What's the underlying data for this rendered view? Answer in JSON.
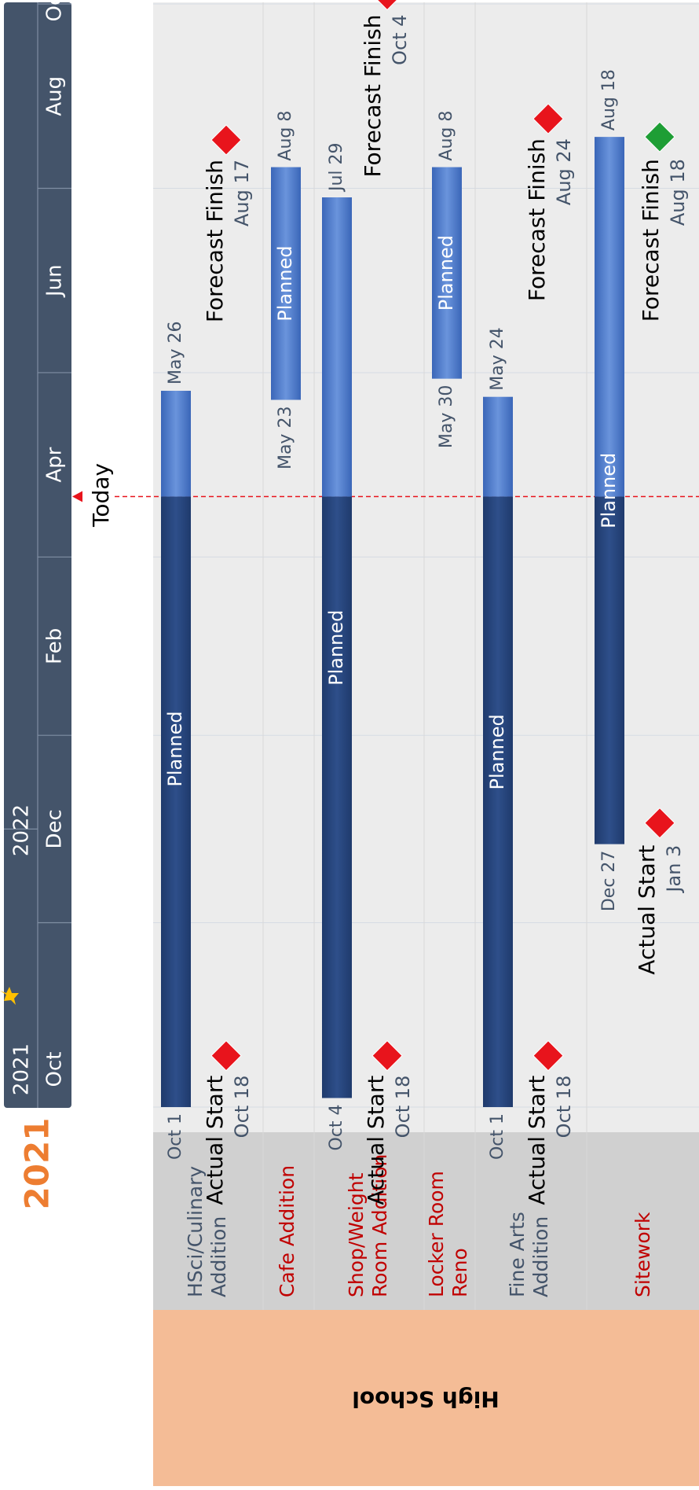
{
  "header": {
    "year_title": "2021",
    "years": [
      "2021",
      "2022"
    ],
    "months": [
      "Oct",
      "Dec",
      "Feb",
      "Apr",
      "Jun",
      "Aug",
      "Oct"
    ]
  },
  "today": {
    "label": "Today",
    "date": "2022-04-21"
  },
  "group": {
    "label": "High School"
  },
  "colors": {
    "header_bg": "#44546a",
    "group_bg": "#f4bc96",
    "task_col_bg": "#d0d0d0",
    "plot_bg": "#ececec",
    "year_title": "#ed7d31",
    "task_label_alt": "#c00000",
    "task_label": "#44546a",
    "bar_done": "#2e4f8a",
    "bar_planned": "#4a78c8",
    "milestone_late": "#e8141c",
    "milestone_ok": "#1e9e35",
    "today_line": "#e8141c"
  },
  "chart_data": {
    "type": "gantt",
    "title": "2021",
    "x_range": [
      "2021-09-20",
      "2022-10-31"
    ],
    "tasks": [
      {
        "name": "HSci/Culinary Addition",
        "start": "2021-10-01",
        "end": "2022-05-26",
        "start_label": "Oct 1",
        "end_label": "May 26",
        "bar_label": "Planned",
        "label_color": "#44546a",
        "milestones": [
          {
            "label": "Actual Start",
            "date_label": "Oct 18",
            "date": "2021-10-18",
            "status": "late"
          },
          {
            "label": "Forecast Finish",
            "date_label": "Aug 17",
            "date": "2022-08-17",
            "status": "late"
          }
        ]
      },
      {
        "name": "Cafe Addition",
        "start": "2022-05-23",
        "end": "2022-08-08",
        "start_label": "May 23",
        "end_label": "Aug 8",
        "bar_label": "Planned",
        "label_color": "#c00000",
        "milestones": []
      },
      {
        "name": "Shop/Weight Room Addition",
        "start": "2021-10-04",
        "end": "2022-07-29",
        "start_label": "Oct 4",
        "end_label": "Jul 29",
        "bar_label": "Planned",
        "label_color": "#c00000",
        "milestones": [
          {
            "label": "Actual Start",
            "date_label": "Oct 18",
            "date": "2021-10-18",
            "status": "late"
          },
          {
            "label": "Forecast Finish",
            "date_label": "Oct 4",
            "date": "2022-10-04",
            "status": "late"
          }
        ]
      },
      {
        "name": "Locker Room Reno",
        "start": "2022-05-30",
        "end": "2022-08-08",
        "start_label": "May 30",
        "end_label": "Aug 8",
        "bar_label": "Planned",
        "label_color": "#c00000",
        "milestones": []
      },
      {
        "name": "Fine Arts Addition",
        "start": "2021-10-01",
        "end": "2022-05-24",
        "start_label": "Oct 1",
        "end_label": "May 24",
        "bar_label": "Planned",
        "label_color": "#44546a",
        "milestones": [
          {
            "label": "Actual Start",
            "date_label": "Oct 18",
            "date": "2021-10-18",
            "status": "late"
          },
          {
            "label": "Forecast Finish",
            "date_label": "Aug 24",
            "date": "2022-08-24",
            "status": "late"
          }
        ]
      },
      {
        "name": "Sitework",
        "start": "2021-12-27",
        "end": "2022-08-18",
        "start_label": "Dec 27",
        "end_label": "Aug 18",
        "bar_label": "Planned",
        "label_color": "#c00000",
        "milestones": [
          {
            "label": "Actual Start",
            "date_label": "Jan 3",
            "date": "2022-01-03",
            "status": "late"
          },
          {
            "label": "Forecast Finish",
            "date_label": "Aug 18",
            "date": "2022-08-18",
            "status": "on-track"
          }
        ]
      }
    ]
  }
}
